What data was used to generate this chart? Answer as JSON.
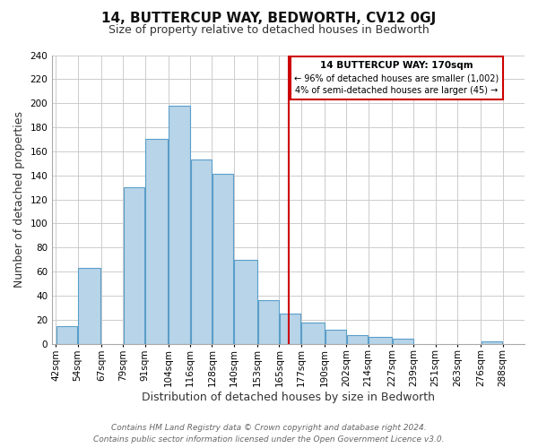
{
  "title": "14, BUTTERCUP WAY, BEDWORTH, CV12 0GJ",
  "subtitle": "Size of property relative to detached houses in Bedworth",
  "xlabel": "Distribution of detached houses by size in Bedworth",
  "ylabel": "Number of detached properties",
  "bar_left_edges": [
    42,
    54,
    67,
    79,
    91,
    104,
    116,
    128,
    140,
    153,
    165,
    177,
    190,
    202,
    214,
    227,
    239,
    251,
    263,
    276
  ],
  "bar_widths": [
    12,
    13,
    12,
    12,
    13,
    12,
    12,
    12,
    13,
    12,
    12,
    13,
    12,
    12,
    13,
    12,
    12,
    12,
    13,
    12
  ],
  "bar_heights": [
    15,
    63,
    0,
    130,
    170,
    198,
    153,
    141,
    70,
    36,
    25,
    18,
    12,
    7,
    6,
    4,
    0,
    0,
    0,
    2
  ],
  "bar_color": "#b8d4e8",
  "bar_edge_color": "#5a9ec9",
  "tick_labels": [
    "42sqm",
    "54sqm",
    "67sqm",
    "79sqm",
    "91sqm",
    "104sqm",
    "116sqm",
    "128sqm",
    "140sqm",
    "153sqm",
    "165sqm",
    "177sqm",
    "190sqm",
    "202sqm",
    "214sqm",
    "227sqm",
    "239sqm",
    "251sqm",
    "263sqm",
    "276sqm",
    "288sqm"
  ],
  "ylim": [
    0,
    240
  ],
  "yticks": [
    0,
    20,
    40,
    60,
    80,
    100,
    120,
    140,
    160,
    180,
    200,
    220,
    240
  ],
  "vline_x": 170,
  "vline_color": "#cc0000",
  "annotation_title": "14 BUTTERCUP WAY: 170sqm",
  "annotation_line1": "← 96% of detached houses are smaller (1,002)",
  "annotation_line2": "4% of semi-detached houses are larger (45) →",
  "annotation_box_color": "#ffffff",
  "annotation_box_edge": "#cc0000",
  "footer_line1": "Contains HM Land Registry data © Crown copyright and database right 2024.",
  "footer_line2": "Contains public sector information licensed under the Open Government Licence v3.0.",
  "background_color": "#ffffff",
  "grid_color": "#cccccc",
  "title_fontsize": 11,
  "subtitle_fontsize": 9,
  "axis_label_fontsize": 9,
  "tick_fontsize": 7.5,
  "footer_fontsize": 6.5,
  "ann_fontsize_title": 7.5,
  "ann_fontsize_body": 7
}
